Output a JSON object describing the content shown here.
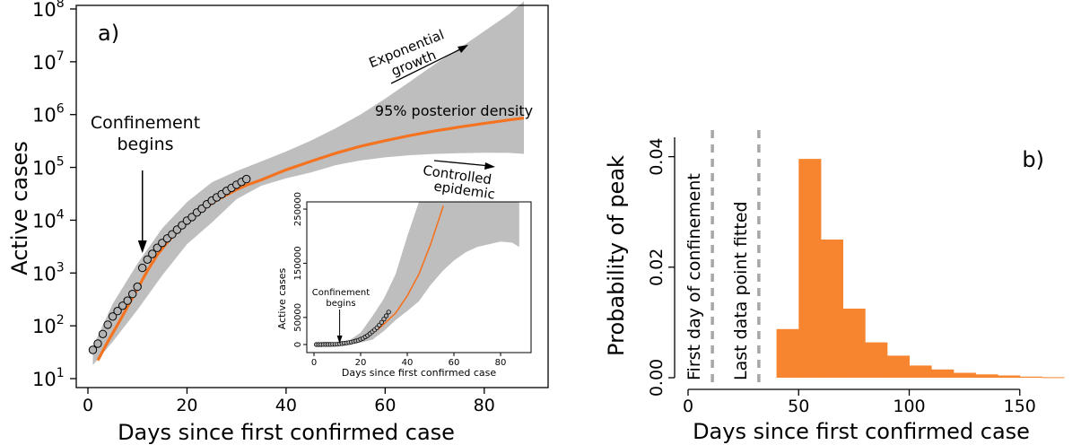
{
  "chart_data": [
    {
      "type": "line",
      "panel_label": "a)",
      "xlabel": "Days since first confirmed case",
      "ylabel": "Active cases",
      "xlim": [
        0,
        90
      ],
      "ylim": [
        10,
        100000000
      ],
      "yscale": "log",
      "x_ticks": [
        0,
        20,
        40,
        60,
        80
      ],
      "y_ticks": [
        {
          "value": 10,
          "base": "10",
          "exp": "1"
        },
        {
          "value": 100,
          "base": "10",
          "exp": "2"
        },
        {
          "value": 1000,
          "base": "10",
          "exp": "3"
        },
        {
          "value": 10000,
          "base": "10",
          "exp": "4"
        },
        {
          "value": 100000,
          "base": "10",
          "exp": "5"
        },
        {
          "value": 1000000,
          "base": "10",
          "exp": "6"
        },
        {
          "value": 10000000,
          "base": "10",
          "exp": "7"
        },
        {
          "value": 100000000,
          "base": "10",
          "exp": "8"
        }
      ],
      "annotations": {
        "confinement_line1": "Confinement",
        "confinement_line2": "begins",
        "confinement_day": 11,
        "exp_line1": "Exponential",
        "exp_line2": "growth",
        "ctrl_line1": "Controlled",
        "ctrl_line2": "epidemic",
        "density": "95% posterior density"
      },
      "colors": {
        "fit": "#f47321",
        "band": "#bebebe",
        "observed_fill": "#b3b3b3"
      },
      "observed": {
        "x": [
          1,
          2,
          3,
          4,
          5,
          6,
          7,
          8,
          9,
          10,
          11,
          12,
          13,
          14,
          15,
          16,
          17,
          18,
          19,
          20,
          21,
          22,
          23,
          24,
          25,
          26,
          27,
          28,
          29,
          30,
          31,
          32
        ],
        "y": [
          35,
          46,
          70,
          105,
          150,
          190,
          240,
          300,
          400,
          550,
          1250,
          1800,
          2300,
          3000,
          3700,
          4500,
          5400,
          6600,
          8000,
          9800,
          11500,
          14000,
          16500,
          20000,
          23500,
          27000,
          31000,
          36000,
          41000,
          47000,
          53000,
          60000
        ]
      },
      "fit": {
        "x": [
          2,
          4,
          6,
          8,
          10,
          12,
          14,
          16,
          18,
          20,
          22,
          24,
          26,
          28,
          30,
          32,
          35,
          40,
          45,
          50,
          55,
          60,
          65,
          70,
          75,
          80,
          85,
          88
        ],
        "y": [
          22,
          50,
          105,
          230,
          500,
          1100,
          2200,
          3800,
          6000,
          9000,
          13000,
          18000,
          24000,
          30000,
          38000,
          46000,
          58000,
          90000,
          130000,
          185000,
          250000,
          320000,
          400000,
          490000,
          580000,
          680000,
          790000,
          860000
        ]
      },
      "band_upper": {
        "x": [
          1,
          5,
          10,
          15,
          20,
          25,
          30,
          35,
          40,
          45,
          50,
          55,
          60,
          65,
          70,
          75,
          80,
          85,
          88
        ],
        "y": [
          40,
          260,
          1500,
          7000,
          22000,
          52000,
          85000,
          130000,
          200000,
          320000,
          550000,
          1000000,
          2000000,
          4200000,
          9000000,
          18000000,
          38000000,
          80000000,
          140000000
        ]
      },
      "band_lower": {
        "x": [
          1,
          5,
          10,
          15,
          20,
          25,
          30,
          35,
          40,
          45,
          50,
          55,
          60,
          65,
          70,
          75,
          80,
          85,
          88
        ],
        "y": [
          18,
          50,
          200,
          900,
          3500,
          9000,
          25000,
          45000,
          62000,
          80000,
          110000,
          135000,
          155000,
          170000,
          180000,
          185000,
          190000,
          188000,
          180000
        ]
      }
    },
    {
      "type": "line",
      "panel_label": "inset",
      "xlabel": "Days since first confirmed case",
      "ylabel": "Active cases",
      "xlim": [
        0,
        90
      ],
      "ylim": [
        0,
        260000
      ],
      "x_ticks": [
        0,
        20,
        40,
        60,
        80
      ],
      "y_ticks": [
        0,
        50000,
        150000,
        250000
      ],
      "annotation_line1": "Confinement",
      "annotation_line2": "begins"
    },
    {
      "type": "bar",
      "panel_label": "b)",
      "xlabel": "Days since first confirmed case",
      "ylabel": "Probability of peak",
      "xlim": [
        0,
        172
      ],
      "ylim": [
        0,
        0.044
      ],
      "x_ticks": [
        0,
        50,
        100,
        150
      ],
      "y_ticks": [
        {
          "value": 0,
          "label": "0.00"
        },
        {
          "value": 0.02,
          "label": "0.02"
        },
        {
          "value": 0.04,
          "label": "0.04"
        }
      ],
      "vlines": [
        {
          "x": 11,
          "label": "First day of confinement"
        },
        {
          "x": 32,
          "label": "Last data point fitted"
        }
      ],
      "bar_color": "#f7852f",
      "bins": [
        {
          "x0": 40,
          "x1": 50,
          "value": 0.0088
        },
        {
          "x0": 50,
          "x1": 60,
          "value": 0.0396
        },
        {
          "x0": 60,
          "x1": 70,
          "value": 0.025
        },
        {
          "x0": 70,
          "x1": 80,
          "value": 0.0125
        },
        {
          "x0": 80,
          "x1": 90,
          "value": 0.0064
        },
        {
          "x0": 90,
          "x1": 100,
          "value": 0.004
        },
        {
          "x0": 100,
          "x1": 110,
          "value": 0.0022
        },
        {
          "x0": 110,
          "x1": 120,
          "value": 0.0015
        },
        {
          "x0": 120,
          "x1": 130,
          "value": 0.0009
        },
        {
          "x0": 130,
          "x1": 140,
          "value": 0.0006
        },
        {
          "x0": 140,
          "x1": 150,
          "value": 0.0004
        },
        {
          "x0": 150,
          "x1": 160,
          "value": 0.0002
        },
        {
          "x0": 160,
          "x1": 170,
          "value": 0.0001
        }
      ]
    }
  ]
}
